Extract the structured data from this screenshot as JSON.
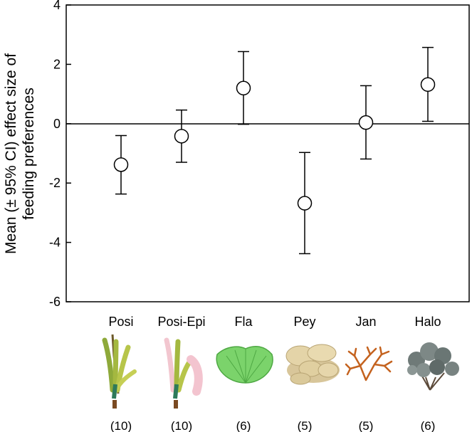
{
  "chart_data": {
    "type": "scatter",
    "title": "",
    "xlabel": "",
    "ylabel_lines": [
      "Mean (± 95% CI) effect size of",
      "feeding preferences"
    ],
    "ylim": [
      -6,
      4
    ],
    "yticks": [
      4,
      2,
      0,
      -2,
      -4,
      -6
    ],
    "zero_line": true,
    "grid": false,
    "categories": [
      "Posi",
      "Posi-Epi",
      "Fla",
      "Pey",
      "Jan",
      "Halo"
    ],
    "sample_sizes": [
      "(10)",
      "(10)",
      "(6)",
      "(5)",
      "(5)",
      "(6)"
    ],
    "points": [
      {
        "category": "Posi",
        "mean": -1.38,
        "ci_low": -2.37,
        "ci_high": -0.4
      },
      {
        "category": "Posi-Epi",
        "mean": -0.42,
        "ci_low": -1.3,
        "ci_high": 0.46
      },
      {
        "category": "Fla",
        "mean": 1.2,
        "ci_low": -0.02,
        "ci_high": 2.43
      },
      {
        "category": "Pey",
        "mean": -2.68,
        "ci_low": -4.38,
        "ci_high": -0.97
      },
      {
        "category": "Jan",
        "mean": 0.04,
        "ci_low": -1.19,
        "ci_high": 1.28
      },
      {
        "category": "Halo",
        "mean": 1.32,
        "ci_low": 0.08,
        "ci_high": 2.57
      }
    ],
    "icons": [
      "seagrass-icon",
      "seagrass-with-epiphyte-icon",
      "fan-alga-icon",
      "peyssonnelia-alga-icon",
      "jania-red-alga-icon",
      "halopteris-brown-alga-icon"
    ]
  }
}
